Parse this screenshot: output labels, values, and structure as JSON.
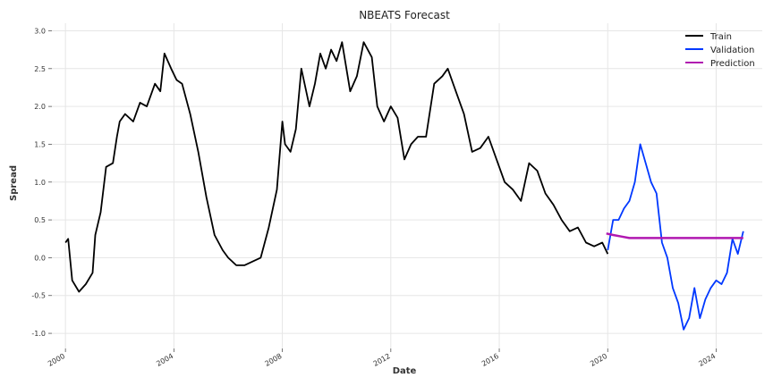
{
  "chart_data": {
    "type": "line",
    "title": "NBEATS Forecast",
    "xlabel": "Date",
    "ylabel": "Spread",
    "xlim": [
      1999.5,
      2025.7
    ],
    "ylim": [
      -1.2,
      3.1
    ],
    "x_ticks": [
      2000,
      2004,
      2008,
      2012,
      2016,
      2020,
      2024
    ],
    "x_tick_labels": [
      "2000",
      "2004",
      "2008",
      "2012",
      "2016",
      "2020",
      "2024"
    ],
    "y_ticks": [
      -1.0,
      -0.5,
      0.0,
      0.5,
      1.0,
      1.5,
      2.0,
      2.5,
      3.0
    ],
    "y_tick_labels": [
      "-1.0",
      "-0.5",
      "0.0",
      "0.5",
      "1.0",
      "1.5",
      "2.0",
      "2.5",
      "3.0"
    ],
    "grid": true,
    "legend_position": "top-right",
    "series": [
      {
        "name": "Train",
        "color": "#000000",
        "x": [
          2000.0,
          2000.1,
          2000.25,
          2000.5,
          2000.75,
          2001.0,
          2001.1,
          2001.3,
          2001.5,
          2001.75,
          2001.9,
          2002.0,
          2002.2,
          2002.5,
          2002.75,
          2003.0,
          2003.3,
          2003.5,
          2003.65,
          2003.9,
          2004.1,
          2004.3,
          2004.6,
          2004.9,
          2005.2,
          2005.5,
          2005.8,
          2006.0,
          2006.3,
          2006.6,
          2006.9,
          2007.2,
          2007.5,
          2007.8,
          2008.0,
          2008.1,
          2008.3,
          2008.5,
          2008.7,
          2009.0,
          2009.2,
          2009.4,
          2009.6,
          2009.8,
          2010.0,
          2010.2,
          2010.5,
          2010.75,
          2011.0,
          2011.3,
          2011.5,
          2011.75,
          2012.0,
          2012.25,
          2012.5,
          2012.75,
          2013.0,
          2013.3,
          2013.6,
          2013.9,
          2014.1,
          2014.4,
          2014.7,
          2015.0,
          2015.3,
          2015.6,
          2015.9,
          2016.2,
          2016.5,
          2016.8,
          2017.1,
          2017.4,
          2017.7,
          2018.0,
          2018.3,
          2018.6,
          2018.9,
          2019.2,
          2019.5,
          2019.8,
          2020.0
        ],
        "y": [
          0.2,
          0.25,
          -0.3,
          -0.45,
          -0.35,
          -0.2,
          0.3,
          0.6,
          1.2,
          1.25,
          1.6,
          1.8,
          1.9,
          1.8,
          2.05,
          2.0,
          2.3,
          2.2,
          2.7,
          2.5,
          2.35,
          2.3,
          1.9,
          1.4,
          0.8,
          0.3,
          0.1,
          0.0,
          -0.1,
          -0.1,
          -0.05,
          0.0,
          0.4,
          0.9,
          1.8,
          1.5,
          1.4,
          1.7,
          2.5,
          2.0,
          2.3,
          2.7,
          2.5,
          2.75,
          2.6,
          2.85,
          2.2,
          2.4,
          2.85,
          2.65,
          2.0,
          1.8,
          2.0,
          1.85,
          1.3,
          1.5,
          1.6,
          1.6,
          2.3,
          2.4,
          2.5,
          2.2,
          1.9,
          1.4,
          1.45,
          1.6,
          1.3,
          1.0,
          0.9,
          0.75,
          1.25,
          1.15,
          0.85,
          0.7,
          0.5,
          0.35,
          0.4,
          0.2,
          0.15,
          0.2,
          0.05
        ]
      },
      {
        "name": "Validation",
        "color": "#0038ff",
        "x": [
          2020.0,
          2020.2,
          2020.4,
          2020.6,
          2020.8,
          2021.0,
          2021.2,
          2021.4,
          2021.6,
          2021.8,
          2022.0,
          2022.2,
          2022.4,
          2022.6,
          2022.8,
          2023.0,
          2023.2,
          2023.4,
          2023.6,
          2023.8,
          2024.0,
          2024.2,
          2024.4,
          2024.6,
          2024.8,
          2025.0
        ],
        "y": [
          0.1,
          0.5,
          0.5,
          0.65,
          0.75,
          1.0,
          1.5,
          1.25,
          1.0,
          0.85,
          0.2,
          0.0,
          -0.4,
          -0.6,
          -0.95,
          -0.8,
          -0.4,
          -0.8,
          -0.55,
          -0.4,
          -0.3,
          -0.35,
          -0.2,
          0.25,
          0.05,
          0.35
        ]
      },
      {
        "name": "Prediction",
        "color": "#b018b0",
        "x": [
          2019.95,
          2020.2,
          2020.5,
          2020.8,
          2021.1,
          2021.5,
          2022.0,
          2022.5,
          2023.0,
          2023.5,
          2024.0,
          2024.5,
          2025.0
        ],
        "y": [
          0.32,
          0.3,
          0.28,
          0.26,
          0.26,
          0.26,
          0.26,
          0.26,
          0.26,
          0.26,
          0.26,
          0.26,
          0.26
        ]
      }
    ]
  }
}
